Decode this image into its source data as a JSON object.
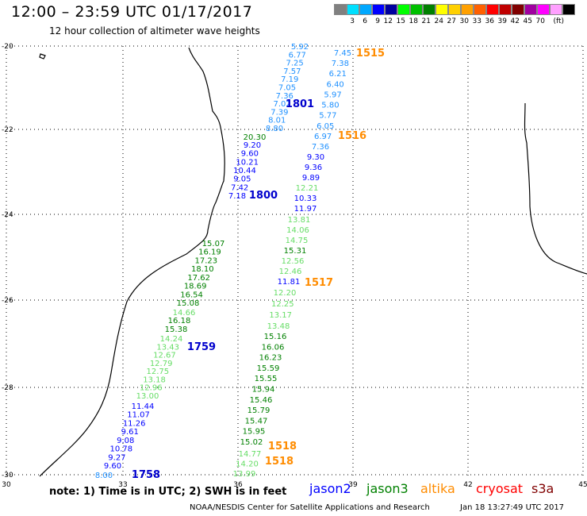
{
  "header": {
    "title": "12:00 – 23:59 UTC 01/17/2017",
    "subtitle": "12 hour collection of altimeter wave heights"
  },
  "legend": {
    "swatches": [
      {
        "color": "#808080"
      },
      {
        "color": "#00e0ff"
      },
      {
        "color": "#00a8ff"
      },
      {
        "color": "#0000ff"
      },
      {
        "color": "#0000a0"
      },
      {
        "color": "#00ff00"
      },
      {
        "color": "#00c000"
      },
      {
        "color": "#008000"
      },
      {
        "color": "#ffff00"
      },
      {
        "color": "#ffd000"
      },
      {
        "color": "#ffa000"
      },
      {
        "color": "#ff6000"
      },
      {
        "color": "#ff0000"
      },
      {
        "color": "#c00000"
      },
      {
        "color": "#800000"
      },
      {
        "color": "#a000a0"
      },
      {
        "color": "#ff00ff"
      },
      {
        "color": "#ffa0ff"
      },
      {
        "color": "#000000"
      }
    ],
    "labels": [
      "3",
      "6",
      "9",
      "12",
      "15",
      "18",
      "21",
      "24",
      "27",
      "30",
      "33",
      "36",
      "39",
      "42",
      "45",
      "70"
    ],
    "unit": "(ft)"
  },
  "axes": {
    "lon": [
      "30",
      "33",
      "36",
      "39",
      "42",
      "45"
    ],
    "lat": [
      "-20",
      "-22",
      "-24",
      "-26",
      "-28",
      "-30"
    ]
  },
  "tracks": [
    {
      "satellite": "jason2",
      "color": "#1e90ff",
      "values": [
        "5.92",
        "6.77",
        "7.25",
        "7.57",
        "7.19",
        "7.05",
        "7.36",
        "7.02",
        "7.39",
        "8.01",
        "8.80"
      ]
    },
    {
      "satellite": "jason3",
      "color": "#008000",
      "values": [
        "20.30"
      ]
    },
    {
      "satellite": "jason2",
      "color": "#0000ff",
      "values": [
        "9.20",
        "9.60",
        "10.21",
        "10.44",
        "9.05",
        "7.42",
        "7.18"
      ]
    },
    {
      "satellite": "jason2",
      "color": "#1e90ff",
      "values": [
        "7.45",
        "7.38",
        "6.21",
        "6.40",
        "5.97",
        "5.80",
        "5.77",
        "6.05",
        "6.97",
        "7.36"
      ]
    },
    {
      "satellite": "jason2",
      "color": "#0000ff",
      "values": [
        "9.30",
        "9.36",
        "9.89"
      ]
    },
    {
      "satellite": "jason3",
      "color": "#66dd66",
      "values": [
        "12.21"
      ]
    },
    {
      "satellite": "jason2",
      "color": "#0000ff",
      "values": [
        "10.33",
        "11.97"
      ]
    },
    {
      "satellite": "jason3",
      "color": "#66dd66",
      "values": [
        "13.81",
        "14.06",
        "14.75"
      ]
    },
    {
      "satellite": "jason3",
      "color": "#008000",
      "values": [
        "15.31"
      ]
    },
    {
      "satellite": "jason3",
      "color": "#66dd66",
      "values": [
        "12.56",
        "12.46"
      ]
    },
    {
      "satellite": "jason2",
      "color": "#0000ff",
      "values": [
        "11.81"
      ]
    },
    {
      "satellite": "jason3",
      "color": "#66dd66",
      "values": [
        "12.20",
        "12.25",
        "13.17",
        "13.48"
      ]
    },
    {
      "satellite": "jason3",
      "color": "#008000",
      "values": [
        "15.16",
        "16.06",
        "16.23",
        "15.59",
        "15.55",
        "15.94",
        "15.46",
        "15.79",
        "15.47",
        "15.95",
        "15.02"
      ]
    },
    {
      "satellite": "jason3",
      "color": "#66dd66",
      "values": [
        "14.77",
        "14.20",
        "13.99"
      ]
    },
    {
      "satellite": "jason3",
      "color": "#008000",
      "values": [
        "15.07",
        "16.19",
        "17.23",
        "18.10",
        "17.62",
        "18.69",
        "16.54",
        "15.08"
      ]
    },
    {
      "satellite": "jason3",
      "color": "#66dd66",
      "values": [
        "14.66"
      ]
    },
    {
      "satellite": "jason3",
      "color": "#008000",
      "values": [
        "16.18",
        "15.38"
      ]
    },
    {
      "satellite": "jason3",
      "color": "#66dd66",
      "values": [
        "14.24",
        "13.43",
        "12.67",
        "12.79",
        "12.75",
        "13.18",
        "12.96",
        "13.00"
      ]
    },
    {
      "satellite": "jason2",
      "color": "#0000ff",
      "values": [
        "11.44",
        "11.07",
        "11.26",
        "9.61",
        "9.08",
        "10.78",
        "9.27",
        "9.60"
      ]
    },
    {
      "satellite": "jason2",
      "color": "#1e90ff",
      "values": [
        "8.00"
      ]
    }
  ],
  "times": [
    {
      "label": "1515",
      "color": "#ff8c00"
    },
    {
      "label": "1801",
      "color": "#0000cd"
    },
    {
      "label": "1516",
      "color": "#ff8c00"
    },
    {
      "label": "1800",
      "color": "#0000cd"
    },
    {
      "label": "1517",
      "color": "#ff8c00"
    },
    {
      "label": "1759",
      "color": "#0000cd"
    },
    {
      "label": "1518",
      "color": "#ff8c00"
    },
    {
      "label": "1518",
      "color": "#ff8c00"
    },
    {
      "label": "1758",
      "color": "#0000cd"
    }
  ],
  "footer": {
    "note": "note: 1) Time is in UTC; 2) SWH is in feet",
    "satellites": [
      {
        "name": "jason2",
        "color": "#0000ff"
      },
      {
        "name": "jason3",
        "color": "#008000"
      },
      {
        "name": "altika",
        "color": "#ff8c00"
      },
      {
        "name": "cryosat",
        "color": "#ff0000"
      },
      {
        "name": "s3a",
        "color": "#800000"
      }
    ],
    "credit": "NOAA/NESDIS Center for Satellite Applications and Research",
    "timestamp": "Jan 18 13:27:49 UTC 2017"
  }
}
